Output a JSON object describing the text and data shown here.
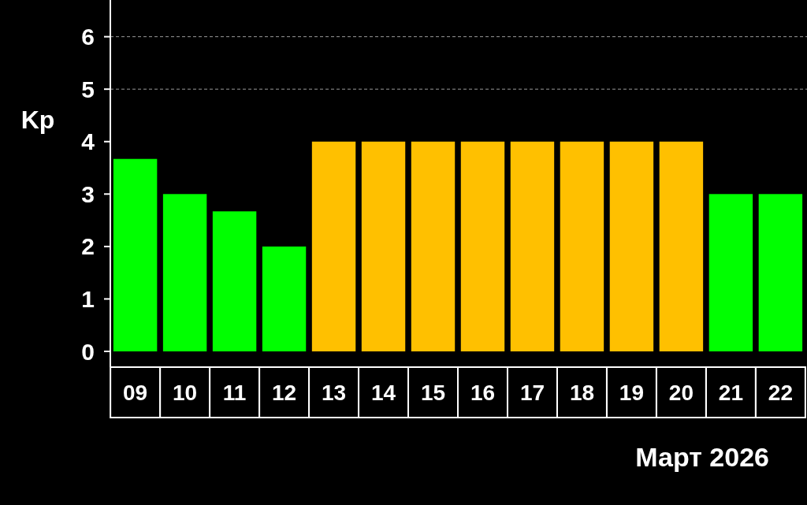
{
  "chart_data": {
    "type": "bar",
    "xlabel": "Март 2026",
    "ylabel": "Kp",
    "categories": [
      "09",
      "10",
      "11",
      "12",
      "13",
      "14",
      "15",
      "16",
      "17",
      "18",
      "19",
      "20",
      "21",
      "22"
    ],
    "values": [
      3.67,
      3,
      2.67,
      2,
      4,
      4,
      4,
      4,
      4,
      4,
      4,
      4,
      3,
      3
    ],
    "colors": [
      "#00ff00",
      "#00ff00",
      "#00ff00",
      "#00ff00",
      "#ffc000",
      "#ffc000",
      "#ffc000",
      "#ffc000",
      "#ffc000",
      "#ffc000",
      "#ffc000",
      "#ffc000",
      "#00ff00",
      "#00ff00"
    ],
    "ylim": [
      -0.3,
      6.7
    ],
    "yticks": [
      0,
      1,
      2,
      3,
      4,
      5,
      6
    ],
    "grid": false,
    "ref_lines": [
      {
        "axis": "y",
        "value": 5,
        "line_style": "dashed",
        "color": "#999999"
      },
      {
        "axis": "y",
        "value": 6,
        "line_style": "dashed",
        "color": "#999999"
      }
    ]
  }
}
